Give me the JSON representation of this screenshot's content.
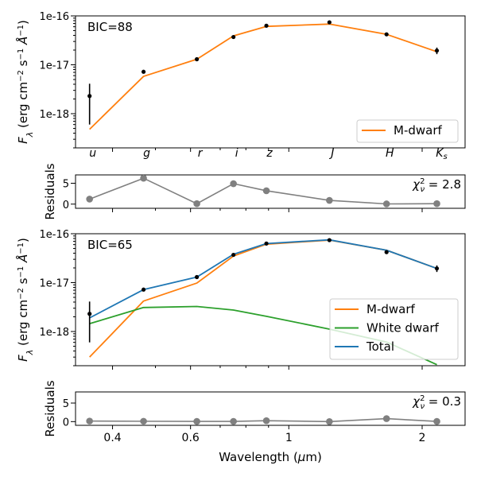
{
  "chart_data": [
    {
      "type": "line",
      "panel": "sed-single",
      "yscale": "log",
      "ylim": [
        2e-19,
        1e-16
      ],
      "xscale": "log",
      "xlim": [
        0.33,
        2.5
      ],
      "ylabel": "F_λ (erg cm⁻² s⁻¹ Å⁻¹)",
      "ytick_labels": [
        "1e-18",
        "1e-17",
        "1e-16"
      ],
      "ytick_values": [
        1e-18,
        1e-17,
        1e-16
      ],
      "band_labels": [
        "u",
        "g",
        "r",
        "i",
        "z",
        "J",
        "H",
        "Ks"
      ],
      "band_wavelengths": [
        0.355,
        0.47,
        0.62,
        0.75,
        0.89,
        1.235,
        1.662,
        2.159
      ],
      "annotation": "BIC=88",
      "legend": {
        "placement": "lower-right",
        "entries": [
          "M-dwarf"
        ]
      },
      "observed": {
        "x": [
          0.355,
          0.47,
          0.62,
          0.75,
          0.89,
          1.235,
          1.662,
          2.159
        ],
        "y": [
          2.3e-18,
          7.2e-18,
          1.3e-17,
          3.7e-17,
          6.3e-17,
          7.4e-17,
          4.2e-17,
          1.95e-17
        ],
        "yerr_low": [
          1.7e-18,
          0,
          0,
          0,
          0,
          0,
          0,
          3e-18
        ],
        "yerr_high": [
          1.8e-18,
          0,
          0,
          0,
          0,
          0,
          0,
          3e-18
        ]
      },
      "series": [
        {
          "name": "M-dwarf",
          "color": "#ff7f0e",
          "x": [
            0.355,
            0.47,
            0.62,
            0.75,
            0.89,
            1.235,
            1.662,
            2.159
          ],
          "y": [
            4.8e-19,
            5.8e-18,
            1.3e-17,
            3.9e-17,
            6.1e-17,
            6.8e-17,
            4.2e-17,
            1.85e-17
          ]
        }
      ]
    },
    {
      "type": "line",
      "panel": "residuals-single",
      "ylabel": "Residuals",
      "ylim": [
        -1,
        7
      ],
      "ytick_labels": [
        "0",
        "5"
      ],
      "ytick_values": [
        0,
        5
      ],
      "annotation": "χ²ν = 2.8",
      "series": [
        {
          "color": "#808080",
          "x": [
            0.355,
            0.47,
            0.62,
            0.75,
            0.89,
            1.235,
            1.662,
            2.159
          ],
          "y": [
            1.2,
            6.2,
            0.1,
            4.9,
            3.2,
            0.9,
            0.05,
            0.1
          ]
        }
      ]
    },
    {
      "type": "line",
      "panel": "sed-binary",
      "yscale": "log",
      "ylim": [
        2e-19,
        1e-16
      ],
      "xscale": "log",
      "xlim": [
        0.33,
        2.5
      ],
      "ylabel": "F_λ (erg cm⁻² s⁻¹ Å⁻¹)",
      "ytick_labels": [
        "1e-18",
        "1e-17",
        "1e-16"
      ],
      "ytick_values": [
        1e-18,
        1e-17,
        1e-16
      ],
      "annotation": "BIC=65",
      "legend": {
        "placement": "lower-right",
        "entries": [
          "M-dwarf",
          "White dwarf",
          "Total"
        ]
      },
      "observed": {
        "x": [
          0.355,
          0.47,
          0.62,
          0.75,
          0.89,
          1.235,
          1.662,
          2.159
        ],
        "y": [
          2.3e-18,
          7.2e-18,
          1.3e-17,
          3.7e-17,
          6.3e-17,
          7.4e-17,
          4.2e-17,
          1.95e-17
        ],
        "yerr_low": [
          1.7e-18,
          0,
          0,
          0,
          0,
          0,
          0,
          3e-18
        ],
        "yerr_high": [
          1.8e-18,
          0,
          0,
          0,
          0,
          0,
          0,
          3e-18
        ]
      },
      "series": [
        {
          "name": "M-dwarf",
          "color": "#ff7f0e",
          "x": [
            0.355,
            0.47,
            0.62,
            0.75,
            0.89,
            1.235,
            1.662,
            2.159
          ],
          "y": [
            3e-19,
            4.2e-18,
            9.8e-18,
            3.5e-17,
            6.1e-17,
            7.4e-17,
            4.6e-17,
            1.95e-17
          ]
        },
        {
          "name": "White dwarf",
          "color": "#2ca02c",
          "x": [
            0.355,
            0.47,
            0.62,
            0.75,
            0.89,
            1.235,
            1.662,
            2.159
          ],
          "y": [
            1.45e-18,
            3.1e-18,
            3.25e-18,
            2.75e-18,
            2.05e-18,
            1.12e-18,
            6.1e-19,
            2.1e-19
          ]
        },
        {
          "name": "Total",
          "color": "#1f77b4",
          "x": [
            0.355,
            0.47,
            0.62,
            0.75,
            0.89,
            1.235,
            1.662,
            2.159
          ],
          "y": [
            1.9e-18,
            7.2e-18,
            1.3e-17,
            3.8e-17,
            6.3e-17,
            7.5e-17,
            4.6e-17,
            1.95e-17
          ]
        }
      ]
    },
    {
      "type": "line",
      "panel": "residuals-binary",
      "ylabel": "Residuals",
      "ylim": [
        -1,
        8
      ],
      "ytick_labels": [
        "0",
        "5"
      ],
      "ytick_values": [
        0,
        5
      ],
      "xlabel": "Wavelength (μm)",
      "xtick_labels": [
        "0.4",
        "0.6",
        "1",
        "2"
      ],
      "xtick_values": [
        0.4,
        0.6,
        1,
        2
      ],
      "annotation": "χ²ν = 0.3",
      "series": [
        {
          "color": "#808080",
          "x": [
            0.355,
            0.47,
            0.62,
            0.75,
            0.89,
            1.235,
            1.662,
            2.159
          ],
          "y": [
            0.15,
            0.1,
            0.05,
            0.05,
            0.25,
            0.0,
            0.8,
            0.05
          ]
        }
      ]
    }
  ]
}
